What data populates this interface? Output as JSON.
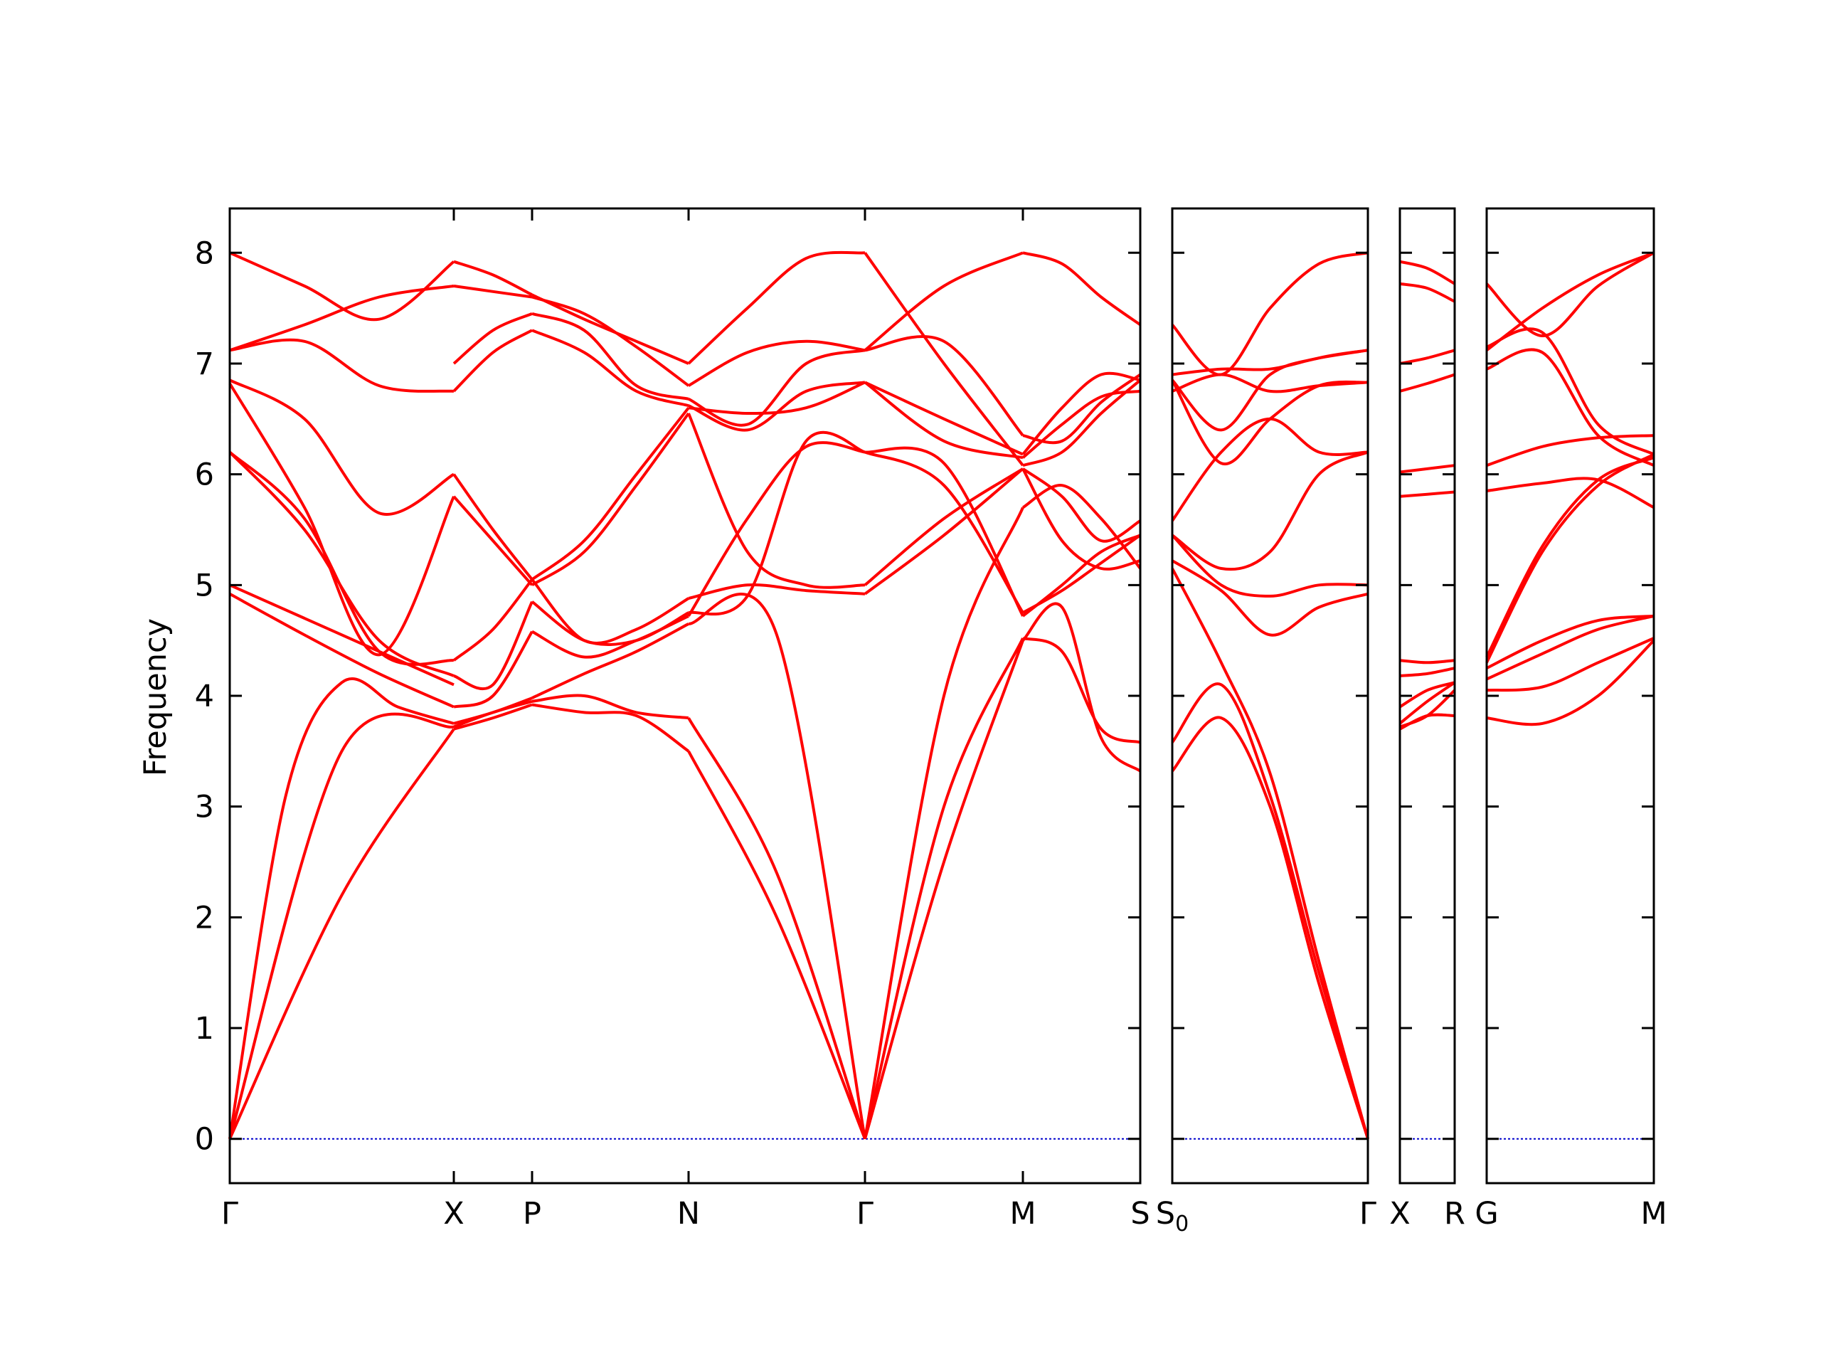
{
  "chart_data": {
    "type": "line",
    "title": "",
    "ylabel": "Frequency",
    "ylim": [
      -0.4,
      8.4
    ],
    "yticks": [
      0,
      1,
      2,
      3,
      4,
      5,
      6,
      7,
      8
    ],
    "line_color": "#ff0000",
    "zero_line_color": "#0000cc",
    "grid": false,
    "panels": [
      {
        "labels": [
          {
            "text": "Γ",
            "sub": ""
          },
          {
            "text": "X",
            "sub": ""
          },
          {
            "text": "P",
            "sub": ""
          },
          {
            "text": "N",
            "sub": ""
          },
          {
            "text": "Γ",
            "sub": ""
          },
          {
            "text": "M",
            "sub": ""
          },
          {
            "text": "S",
            "sub": ""
          }
        ],
        "segments": [
          {
            "bands": [
              [
                0,
                2.2,
                3.7
              ],
              [
                0,
                3.5,
                3.72
              ],
              [
                0,
                3.1,
                4.12,
                3.9,
                3.75
              ],
              [
                4.92,
                4.55,
                4.2,
                3.9
              ],
              [
                5.0,
                4.7,
                4.4,
                4.1
              ],
              [
                6.2,
                5.5,
                4.5,
                4.18
              ],
              [
                6.2,
                5.6,
                4.4,
                4.32
              ],
              [
                6.82,
                5.7,
                4.37,
                5.8
              ],
              [
                6.85,
                6.5,
                5.65,
                6.0
              ],
              [
                7.12,
                7.2,
                6.8,
                6.75
              ],
              [
                7.12,
                7.35,
                7.6,
                7.7
              ],
              [
                8.0,
                7.7,
                7.4,
                7.92
              ]
            ]
          },
          {
            "bands": [
              [
                3.7,
                3.8,
                3.92
              ],
              [
                3.72,
                3.85,
                3.95
              ],
              [
                3.75,
                3.85,
                3.98
              ],
              [
                3.9,
                4.0,
                4.58
              ],
              [
                4.18,
                4.1,
                4.85
              ],
              [
                4.32,
                4.6,
                5.05
              ],
              [
                5.8,
                5.4,
                5.0
              ],
              [
                6.0,
                5.5,
                5.05
              ],
              [
                6.75,
                7.1,
                7.3
              ],
              [
                7.0,
                7.3,
                7.45
              ],
              [
                7.7,
                7.65,
                7.6
              ],
              [
                7.92,
                7.8,
                7.62
              ]
            ]
          },
          {
            "bands": [
              [
                3.92,
                3.85,
                3.82,
                3.5
              ],
              [
                3.95,
                4.0,
                3.85,
                3.8
              ],
              [
                3.98,
                4.2,
                4.4,
                4.65
              ],
              [
                4.58,
                4.35,
                4.5,
                4.72
              ],
              [
                4.85,
                4.5,
                4.5,
                4.75
              ],
              [
                5.05,
                4.5,
                4.6,
                4.88
              ],
              [
                5.0,
                5.3,
                5.9,
                6.55
              ],
              [
                5.05,
                5.4,
                6.0,
                6.6
              ],
              [
                7.3,
                7.1,
                6.75,
                6.62
              ],
              [
                7.45,
                7.3,
                6.8,
                6.68
              ],
              [
                7.6,
                7.45,
                7.15,
                6.8
              ],
              [
                7.62,
                7.4,
                7.2,
                7.0
              ]
            ]
          },
          {
            "bands": [
              [
                3.5,
                2.0,
                0
              ],
              [
                3.8,
                2.4,
                0
              ],
              [
                4.65,
                4.55,
                0
              ],
              [
                4.72,
                5.6,
                6.25,
                6.2
              ],
              [
                4.75,
                4.9,
                6.3,
                6.2
              ],
              [
                4.88,
                5.0,
                4.95,
                4.92
              ],
              [
                6.55,
                5.3,
                5.0,
                5.0
              ],
              [
                6.6,
                6.55,
                6.6,
                6.83
              ],
              [
                6.62,
                6.4,
                6.75,
                6.83
              ],
              [
                6.68,
                6.45,
                7.0,
                7.12
              ],
              [
                6.8,
                7.1,
                7.2,
                7.12
              ],
              [
                7.0,
                7.5,
                7.95,
                8.0
              ]
            ]
          },
          {
            "bands": [
              [
                0,
                2.5,
                4.5
              ],
              [
                0,
                3.0,
                4.52
              ],
              [
                0,
                4.0,
                5.7
              ],
              [
                4.92,
                5.45,
                6.05
              ],
              [
                5.0,
                5.6,
                6.05
              ],
              [
                6.2,
                5.9,
                4.75
              ],
              [
                6.2,
                6.1,
                4.72
              ],
              [
                6.83,
                6.5,
                6.18
              ],
              [
                6.83,
                6.3,
                6.15
              ],
              [
                7.12,
                7.7,
                8.0
              ],
              [
                7.12,
                7.2,
                6.35
              ],
              [
                8.0,
                7.0,
                6.08
              ]
            ]
          },
          {
            "bands": [
              [
                4.5,
                4.8,
                3.62,
                3.32
              ],
              [
                4.52,
                4.4,
                3.7,
                3.58
              ],
              [
                5.7,
                5.9,
                5.6,
                5.15
              ],
              [
                6.05,
                5.4,
                5.15,
                5.22
              ],
              [
                6.05,
                5.8,
                5.4,
                5.58
              ],
              [
                4.75,
                4.95,
                5.2,
                5.45
              ],
              [
                4.72,
                5.0,
                5.3,
                5.45
              ],
              [
                6.18,
                6.6,
                6.9,
                6.85
              ],
              [
                6.15,
                6.45,
                6.7,
                6.75
              ],
              [
                8.0,
                7.9,
                7.6,
                7.35
              ],
              [
                6.35,
                6.3,
                6.65,
                6.9
              ],
              [
                6.08,
                6.2,
                6.55,
                6.85
              ]
            ]
          }
        ]
      },
      {
        "labels": [
          {
            "text": "S",
            "sub": "0"
          },
          {
            "text": "Γ",
            "sub": ""
          }
        ],
        "segments": [
          {
            "bands": [
              [
                3.32,
                3.8,
                3.0,
                1.4,
                0
              ],
              [
                3.58,
                4.1,
                3.1,
                1.5,
                0
              ],
              [
                5.15,
                4.3,
                3.3,
                1.6,
                0
              ],
              [
                5.22,
                4.95,
                4.55,
                4.8,
                4.92
              ],
              [
                5.45,
                5.0,
                4.9,
                5.0,
                5.0
              ],
              [
                5.45,
                5.15,
                5.3,
                6.0,
                6.2
              ],
              [
                5.58,
                6.2,
                6.5,
                6.2,
                6.2
              ],
              [
                6.85,
                6.1,
                6.5,
                6.8,
                6.83
              ],
              [
                6.75,
                6.9,
                6.75,
                6.8,
                6.83
              ],
              [
                6.9,
                6.95,
                6.95,
                7.05,
                7.12
              ],
              [
                6.85,
                6.4,
                6.9,
                7.05,
                7.12
              ],
              [
                7.35,
                6.9,
                7.5,
                7.9,
                8.0
              ]
            ]
          }
        ]
      },
      {
        "labels": [
          {
            "text": "X",
            "sub": ""
          },
          {
            "text": "R",
            "sub": ""
          }
        ],
        "segments": [
          {
            "bands": [
              [
                3.7,
                3.82,
                3.82
              ],
              [
                3.72,
                3.82,
                4.05
              ],
              [
                3.75,
                3.95,
                4.12
              ],
              [
                3.9,
                4.05,
                4.12
              ],
              [
                4.18,
                4.2,
                4.25
              ],
              [
                4.32,
                4.3,
                4.32
              ],
              [
                5.8,
                5.82,
                5.84
              ],
              [
                6.02,
                6.05,
                6.08
              ],
              [
                6.75,
                6.82,
                6.9
              ],
              [
                7.0,
                7.05,
                7.12
              ],
              [
                7.72,
                7.68,
                7.56
              ],
              [
                7.92,
                7.86,
                7.72
              ]
            ]
          }
        ]
      },
      {
        "labels": [
          {
            "text": "G",
            "sub": ""
          },
          {
            "text": "M",
            "sub": ""
          }
        ],
        "segments": [
          {
            "bands": [
              [
                3.8,
                3.75,
                4.0,
                4.5
              ],
              [
                4.05,
                4.08,
                4.3,
                4.52
              ],
              [
                4.15,
                4.38,
                4.6,
                4.72
              ],
              [
                4.25,
                4.5,
                4.68,
                4.72
              ],
              [
                4.3,
                5.3,
                5.9,
                6.18
              ],
              [
                4.35,
                5.35,
                5.95,
                6.15
              ],
              [
                5.85,
                5.92,
                5.95,
                5.7
              ],
              [
                6.08,
                6.25,
                6.33,
                6.35
              ],
              [
                6.95,
                7.1,
                6.35,
                6.08
              ],
              [
                7.15,
                7.28,
                6.45,
                6.18
              ],
              [
                7.72,
                7.25,
                7.7,
                8.0
              ],
              [
                7.12,
                7.5,
                7.8,
                8.0
              ]
            ]
          }
        ]
      }
    ]
  }
}
